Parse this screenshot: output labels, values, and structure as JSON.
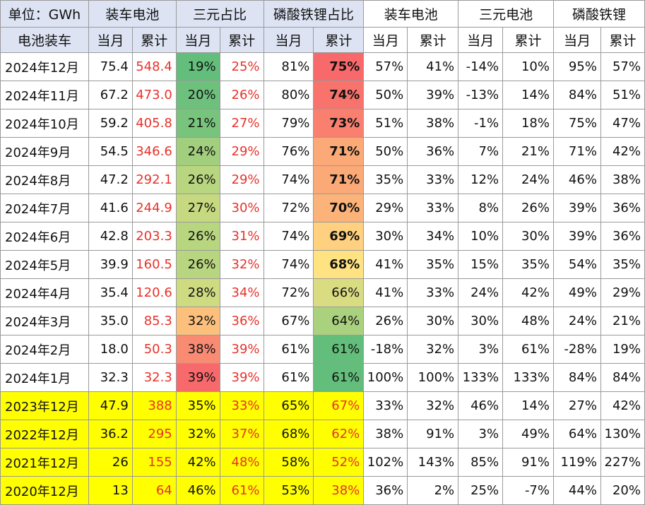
{
  "header": {
    "unit": "单位：GWh",
    "groups": [
      "装车电池",
      "三元占比",
      "磷酸铁锂占比",
      "装车电池",
      "三元电池",
      "磷酸铁锂"
    ],
    "row_label": "电池装车",
    "sub": [
      "当月",
      "累计",
      "当月",
      "累计",
      "当月",
      "累计",
      "当月",
      "累计",
      "当月",
      "累计",
      "当月",
      "累计"
    ]
  },
  "rows": [
    {
      "label": "2024年12月",
      "cells": [
        "75.4",
        "548.4",
        "19%",
        "25%",
        "81%",
        "75%",
        "57%",
        "41%",
        "-14%",
        "10%",
        "95%",
        "57%"
      ]
    },
    {
      "label": "2024年11月",
      "cells": [
        "67.2",
        "473.0",
        "20%",
        "26%",
        "80%",
        "74%",
        "50%",
        "39%",
        "-13%",
        "14%",
        "84%",
        "51%"
      ]
    },
    {
      "label": "2024年10月",
      "cells": [
        "59.2",
        "405.8",
        "21%",
        "27%",
        "79%",
        "73%",
        "51%",
        "38%",
        "-1%",
        "18%",
        "75%",
        "47%"
      ]
    },
    {
      "label": "2024年9月",
      "cells": [
        "54.5",
        "346.6",
        "24%",
        "29%",
        "76%",
        "71%",
        "50%",
        "36%",
        "7%",
        "21%",
        "71%",
        "42%"
      ]
    },
    {
      "label": "2024年8月",
      "cells": [
        "47.2",
        "292.1",
        "26%",
        "29%",
        "74%",
        "71%",
        "35%",
        "33%",
        "12%",
        "24%",
        "46%",
        "38%"
      ]
    },
    {
      "label": "2024年7月",
      "cells": [
        "41.6",
        "244.9",
        "27%",
        "30%",
        "72%",
        "70%",
        "29%",
        "33%",
        "8%",
        "26%",
        "39%",
        "36%"
      ]
    },
    {
      "label": "2024年6月",
      "cells": [
        "42.8",
        "203.3",
        "26%",
        "31%",
        "74%",
        "69%",
        "30%",
        "34%",
        "10%",
        "30%",
        "39%",
        "36%"
      ]
    },
    {
      "label": "2024年5月",
      "cells": [
        "39.9",
        "160.5",
        "26%",
        "32%",
        "74%",
        "68%",
        "41%",
        "35%",
        "15%",
        "35%",
        "54%",
        "35%"
      ]
    },
    {
      "label": "2024年4月",
      "cells": [
        "35.4",
        "120.6",
        "28%",
        "34%",
        "72%",
        "66%",
        "41%",
        "33%",
        "24%",
        "42%",
        "49%",
        "29%"
      ]
    },
    {
      "label": "2024年3月",
      "cells": [
        "35.0",
        "85.3",
        "32%",
        "36%",
        "67%",
        "64%",
        "26%",
        "30%",
        "30%",
        "48%",
        "24%",
        "21%"
      ]
    },
    {
      "label": "2024年2月",
      "cells": [
        "18.0",
        "50.3",
        "38%",
        "39%",
        "61%",
        "61%",
        "-18%",
        "32%",
        "3%",
        "61%",
        "-28%",
        "19%"
      ]
    },
    {
      "label": "2024年1月",
      "cells": [
        "32.3",
        "32.3",
        "39%",
        "39%",
        "61%",
        "61%",
        "100%",
        "100%",
        "133%",
        "133%",
        "84%",
        "84%"
      ]
    },
    {
      "label": "2023年12月",
      "cells": [
        "47.9",
        "388",
        "35%",
        "33%",
        "65%",
        "67%",
        "33%",
        "32%",
        "46%",
        "14%",
        "27%",
        "42%"
      ]
    },
    {
      "label": "2022年12月",
      "cells": [
        "36.2",
        "295",
        "32%",
        "37%",
        "68%",
        "62%",
        "38%",
        "91%",
        "3%",
        "49%",
        "64%",
        "130%"
      ]
    },
    {
      "label": "2021年12月",
      "cells": [
        "26",
        "155",
        "42%",
        "48%",
        "58%",
        "52%",
        "102%",
        "143%",
        "85%",
        "91%",
        "119%",
        "227%"
      ]
    },
    {
      "label": "2020年12月",
      "cells": [
        "13",
        "64",
        "46%",
        "61%",
        "53%",
        "38%",
        "36%",
        "2%",
        "25%",
        "-7%",
        "44%",
        "20%"
      ]
    }
  ],
  "colors": {
    "header_bg": "#dde3f3",
    "yellow_rows": "#ffff00",
    "red_text": "#e8322a",
    "ternary_monthly_scale": [
      "#63be7b",
      "#ffeb84",
      "#f8696b"
    ],
    "lfp_cumulative_scale": [
      "#63be7b",
      "#ffeb84",
      "#f8696b"
    ]
  }
}
